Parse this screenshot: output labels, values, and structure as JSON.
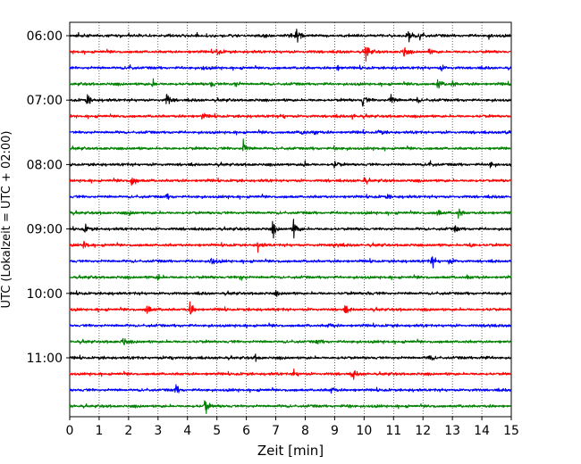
{
  "chart_data": {
    "type": "line",
    "title": "",
    "xlabel": "Zeit  [min]",
    "ylabel": "UTC (Lokalzeit = UTC + 02:00)",
    "xlim": [
      0,
      15
    ],
    "x_ticks": [
      0,
      1,
      2,
      3,
      4,
      5,
      6,
      7,
      8,
      9,
      10,
      11,
      12,
      13,
      14,
      15
    ],
    "y_tick_labels": [
      "06:00",
      "07:00",
      "08:00",
      "09:00",
      "10:00",
      "11:00"
    ],
    "grid": "vertical, dotted",
    "trace_interval_minutes": 15,
    "color_cycle": [
      "#000000",
      "#ff0000",
      "#0000ff",
      "#008000"
    ],
    "rows": [
      {
        "start": "06:00",
        "events": [
          [
            7.7,
            1.0
          ],
          [
            11.5,
            0.5
          ],
          [
            11.9,
            0.55
          ],
          [
            14.2,
            0.25
          ]
        ]
      },
      {
        "start": "06:15",
        "events": [
          [
            5.0,
            0.35
          ],
          [
            10.05,
            0.95
          ],
          [
            11.35,
            0.5
          ],
          [
            12.2,
            0.25
          ]
        ]
      },
      {
        "start": "06:30",
        "events": [
          [
            2.0,
            0.25
          ],
          [
            4.5,
            0.2
          ],
          [
            9.1,
            0.2
          ],
          [
            12.6,
            0.3
          ]
        ]
      },
      {
        "start": "06:45",
        "events": [
          [
            2.8,
            0.4
          ],
          [
            4.8,
            0.35
          ],
          [
            5.6,
            0.35
          ],
          [
            12.5,
            0.5
          ],
          [
            13.0,
            0.3
          ]
        ]
      },
      {
        "start": "07:00",
        "events": [
          [
            0.6,
            0.6
          ],
          [
            3.3,
            0.7
          ],
          [
            9.95,
            0.65
          ],
          [
            10.9,
            0.7
          ],
          [
            11.8,
            0.25
          ]
        ]
      },
      {
        "start": "07:15",
        "events": [
          [
            4.5,
            0.3
          ],
          [
            7.2,
            0.25
          ],
          [
            9.6,
            0.25
          ]
        ]
      },
      {
        "start": "07:30",
        "events": [
          [
            7.9,
            0.3
          ],
          [
            8.3,
            0.3
          ],
          [
            10.5,
            0.25
          ],
          [
            14.8,
            0.3
          ]
        ]
      },
      {
        "start": "07:45",
        "events": [
          [
            5.9,
            0.7
          ],
          [
            9.0,
            0.2
          ]
        ]
      },
      {
        "start": "08:00",
        "events": [
          [
            7.9,
            0.4
          ],
          [
            9.0,
            0.35
          ],
          [
            12.2,
            0.35
          ],
          [
            14.3,
            0.35
          ]
        ]
      },
      {
        "start": "08:15",
        "events": [
          [
            2.1,
            0.8
          ],
          [
            10.0,
            0.3
          ]
        ]
      },
      {
        "start": "08:30",
        "events": [
          [
            3.3,
            0.2
          ],
          [
            10.8,
            0.2
          ]
        ]
      },
      {
        "start": "08:45",
        "events": [
          [
            2.0,
            0.25
          ],
          [
            12.5,
            0.4
          ],
          [
            13.2,
            0.5
          ]
        ]
      },
      {
        "start": "09:00",
        "events": [
          [
            0.5,
            0.45
          ],
          [
            6.9,
            0.7
          ],
          [
            7.6,
            1.0
          ],
          [
            13.1,
            0.35
          ]
        ]
      },
      {
        "start": "09:15",
        "events": [
          [
            0.5,
            0.4
          ],
          [
            6.4,
            0.45
          ],
          [
            9.0,
            0.35
          ],
          [
            13.6,
            0.3
          ]
        ]
      },
      {
        "start": "09:30",
        "events": [
          [
            4.8,
            0.5
          ],
          [
            12.3,
            0.7
          ],
          [
            12.9,
            0.3
          ]
        ]
      },
      {
        "start": "09:45",
        "events": [
          [
            3.0,
            0.35
          ],
          [
            5.8,
            0.3
          ],
          [
            13.5,
            0.25
          ]
        ]
      },
      {
        "start": "10:00",
        "events": [
          [
            7.0,
            0.2
          ],
          [
            10.1,
            0.2
          ]
        ]
      },
      {
        "start": "10:15",
        "events": [
          [
            2.6,
            0.8
          ],
          [
            4.1,
            0.75
          ],
          [
            9.35,
            0.45
          ]
        ]
      },
      {
        "start": "10:30",
        "events": [
          [
            8.8,
            0.25
          ],
          [
            14.2,
            0.2
          ]
        ]
      },
      {
        "start": "10:45",
        "events": [
          [
            1.8,
            0.5
          ],
          [
            8.4,
            0.2
          ]
        ]
      },
      {
        "start": "11:00",
        "events": [
          [
            3.4,
            0.3
          ],
          [
            6.3,
            0.25
          ],
          [
            12.2,
            0.3
          ],
          [
            14.0,
            0.25
          ]
        ]
      },
      {
        "start": "11:15",
        "events": [
          [
            7.6,
            0.4
          ],
          [
            9.6,
            0.55
          ]
        ]
      },
      {
        "start": "11:30",
        "events": [
          [
            3.6,
            0.45
          ],
          [
            8.9,
            0.35
          ]
        ]
      },
      {
        "start": "11:45",
        "events": [
          [
            4.6,
            0.8
          ],
          [
            9.5,
            0.2
          ]
        ]
      }
    ]
  }
}
